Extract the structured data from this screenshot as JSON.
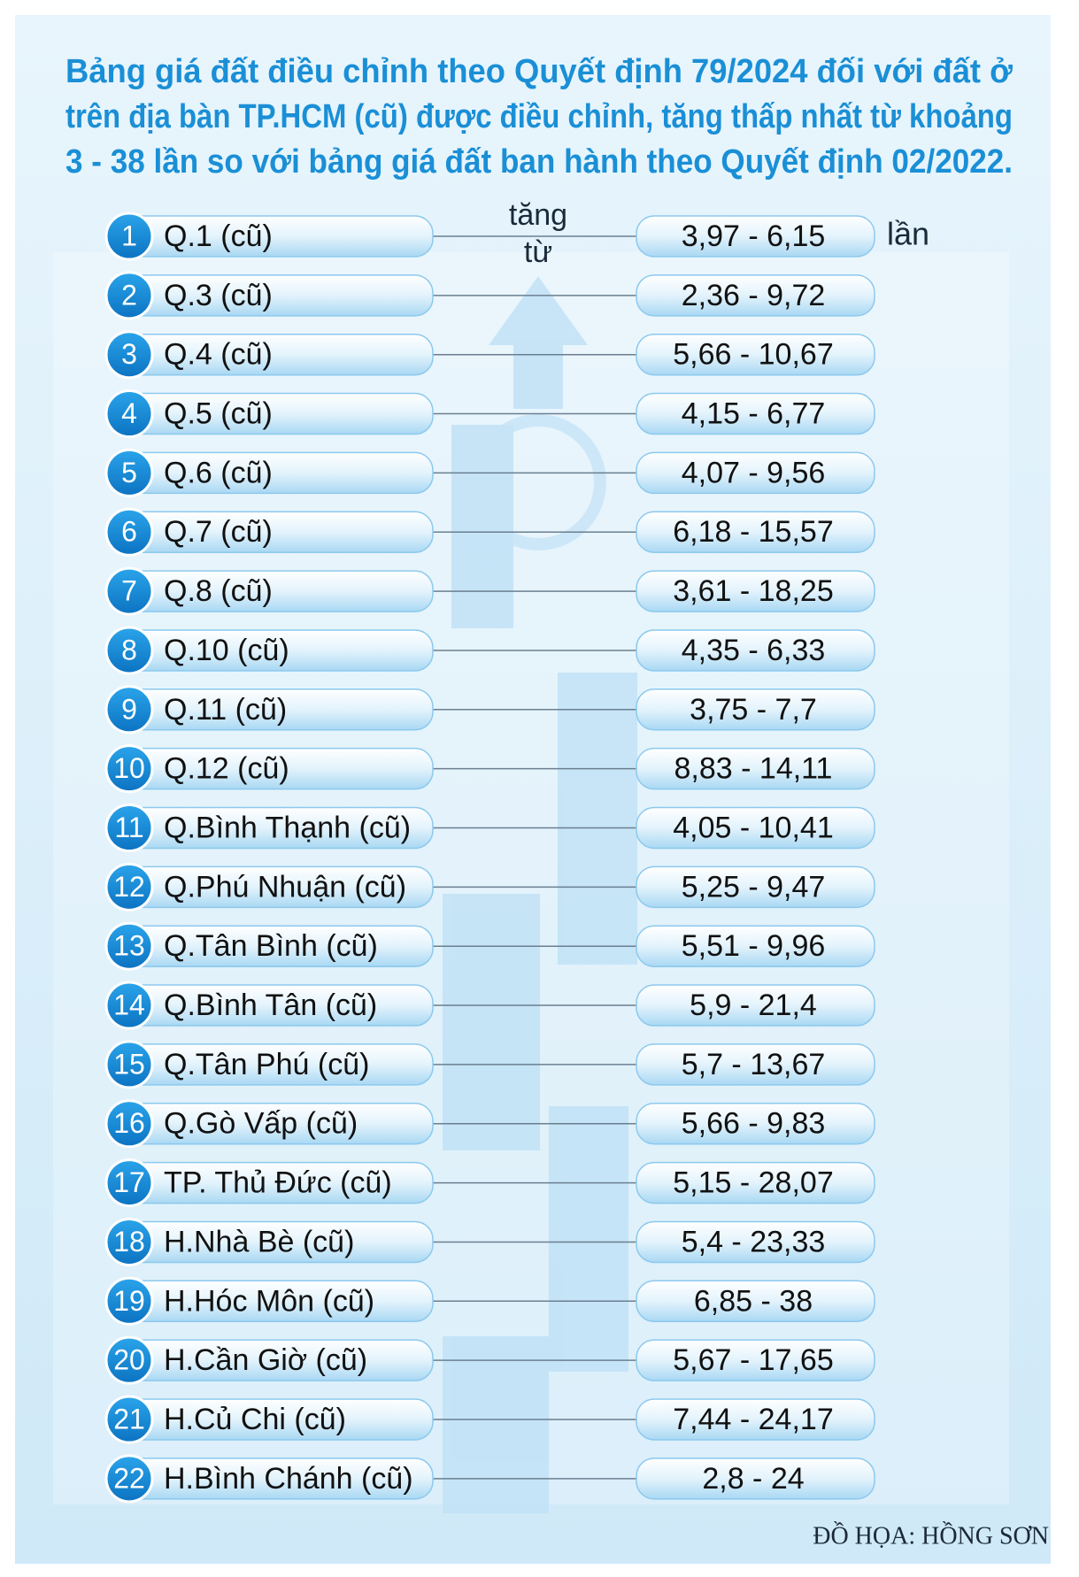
{
  "title_lines": [
    "Bảng giá đất điều chỉnh theo Quyết định 79/2024 đối với đất ở",
    "trên địa bàn TP.HCM (cũ) được điều chỉnh, tăng thấp nhất từ khoảng",
    "3 - 38 lần so với bảng giá đất ban hành theo Quyết định 02/2022."
  ],
  "increase_label_lines": [
    "tăng",
    "từ"
  ],
  "unit": "lần",
  "rows": [
    {
      "no": "1",
      "name": "Q.1 (cũ)",
      "range": "3,97 - 6,15"
    },
    {
      "no": "2",
      "name": "Q.3 (cũ)",
      "range": "2,36 - 9,72"
    },
    {
      "no": "3",
      "name": "Q.4 (cũ)",
      "range": "5,66 - 10,67"
    },
    {
      "no": "4",
      "name": "Q.5 (cũ)",
      "range": "4,15 - 6,77"
    },
    {
      "no": "5",
      "name": "Q.6 (cũ)",
      "range": "4,07 - 9,56"
    },
    {
      "no": "6",
      "name": "Q.7 (cũ)",
      "range": "6,18 - 15,57"
    },
    {
      "no": "7",
      "name": "Q.8 (cũ)",
      "range": "3,61 - 18,25"
    },
    {
      "no": "8",
      "name": "Q.10 (cũ)",
      "range": "4,35 - 6,33"
    },
    {
      "no": "9",
      "name": "Q.11 (cũ)",
      "range": "3,75 - 7,7"
    },
    {
      "no": "10",
      "name": "Q.12 (cũ)",
      "range": "8,83 - 14,11"
    },
    {
      "no": "11",
      "name": "Q.Bình Thạnh (cũ)",
      "range": "4,05 - 10,41"
    },
    {
      "no": "12",
      "name": "Q.Phú Nhuận (cũ)",
      "range": "5,25 - 9,47"
    },
    {
      "no": "13",
      "name": "Q.Tân Bình (cũ)",
      "range": "5,51 - 9,96"
    },
    {
      "no": "14",
      "name": "Q.Bình Tân (cũ)",
      "range": "5,9 - 21,4"
    },
    {
      "no": "15",
      "name": "Q.Tân Phú (cũ)",
      "range": "5,7 - 13,67"
    },
    {
      "no": "16",
      "name": "Q.Gò Vấp (cũ)",
      "range": "5,66 - 9,83"
    },
    {
      "no": "17",
      "name": "TP. Thủ Đức (cũ)",
      "range": "5,15 - 28,07"
    },
    {
      "no": "18",
      "name": "H.Nhà Bè (cũ)",
      "range": "5,4 - 23,33"
    },
    {
      "no": "19",
      "name": "H.Hóc Môn (cũ)",
      "range": "6,85 - 38"
    },
    {
      "no": "20",
      "name": "H.Cần Giờ (cũ)",
      "range": "5,67 - 17,65"
    },
    {
      "no": "21",
      "name": "H.Củ Chi (cũ)",
      "range": "7,44 - 24,17"
    },
    {
      "no": "22",
      "name": "H.Bình Chánh (cũ)",
      "range": "2,8 - 24"
    }
  ],
  "credit": "ĐỒ HỌA: HỒNG SƠN"
}
